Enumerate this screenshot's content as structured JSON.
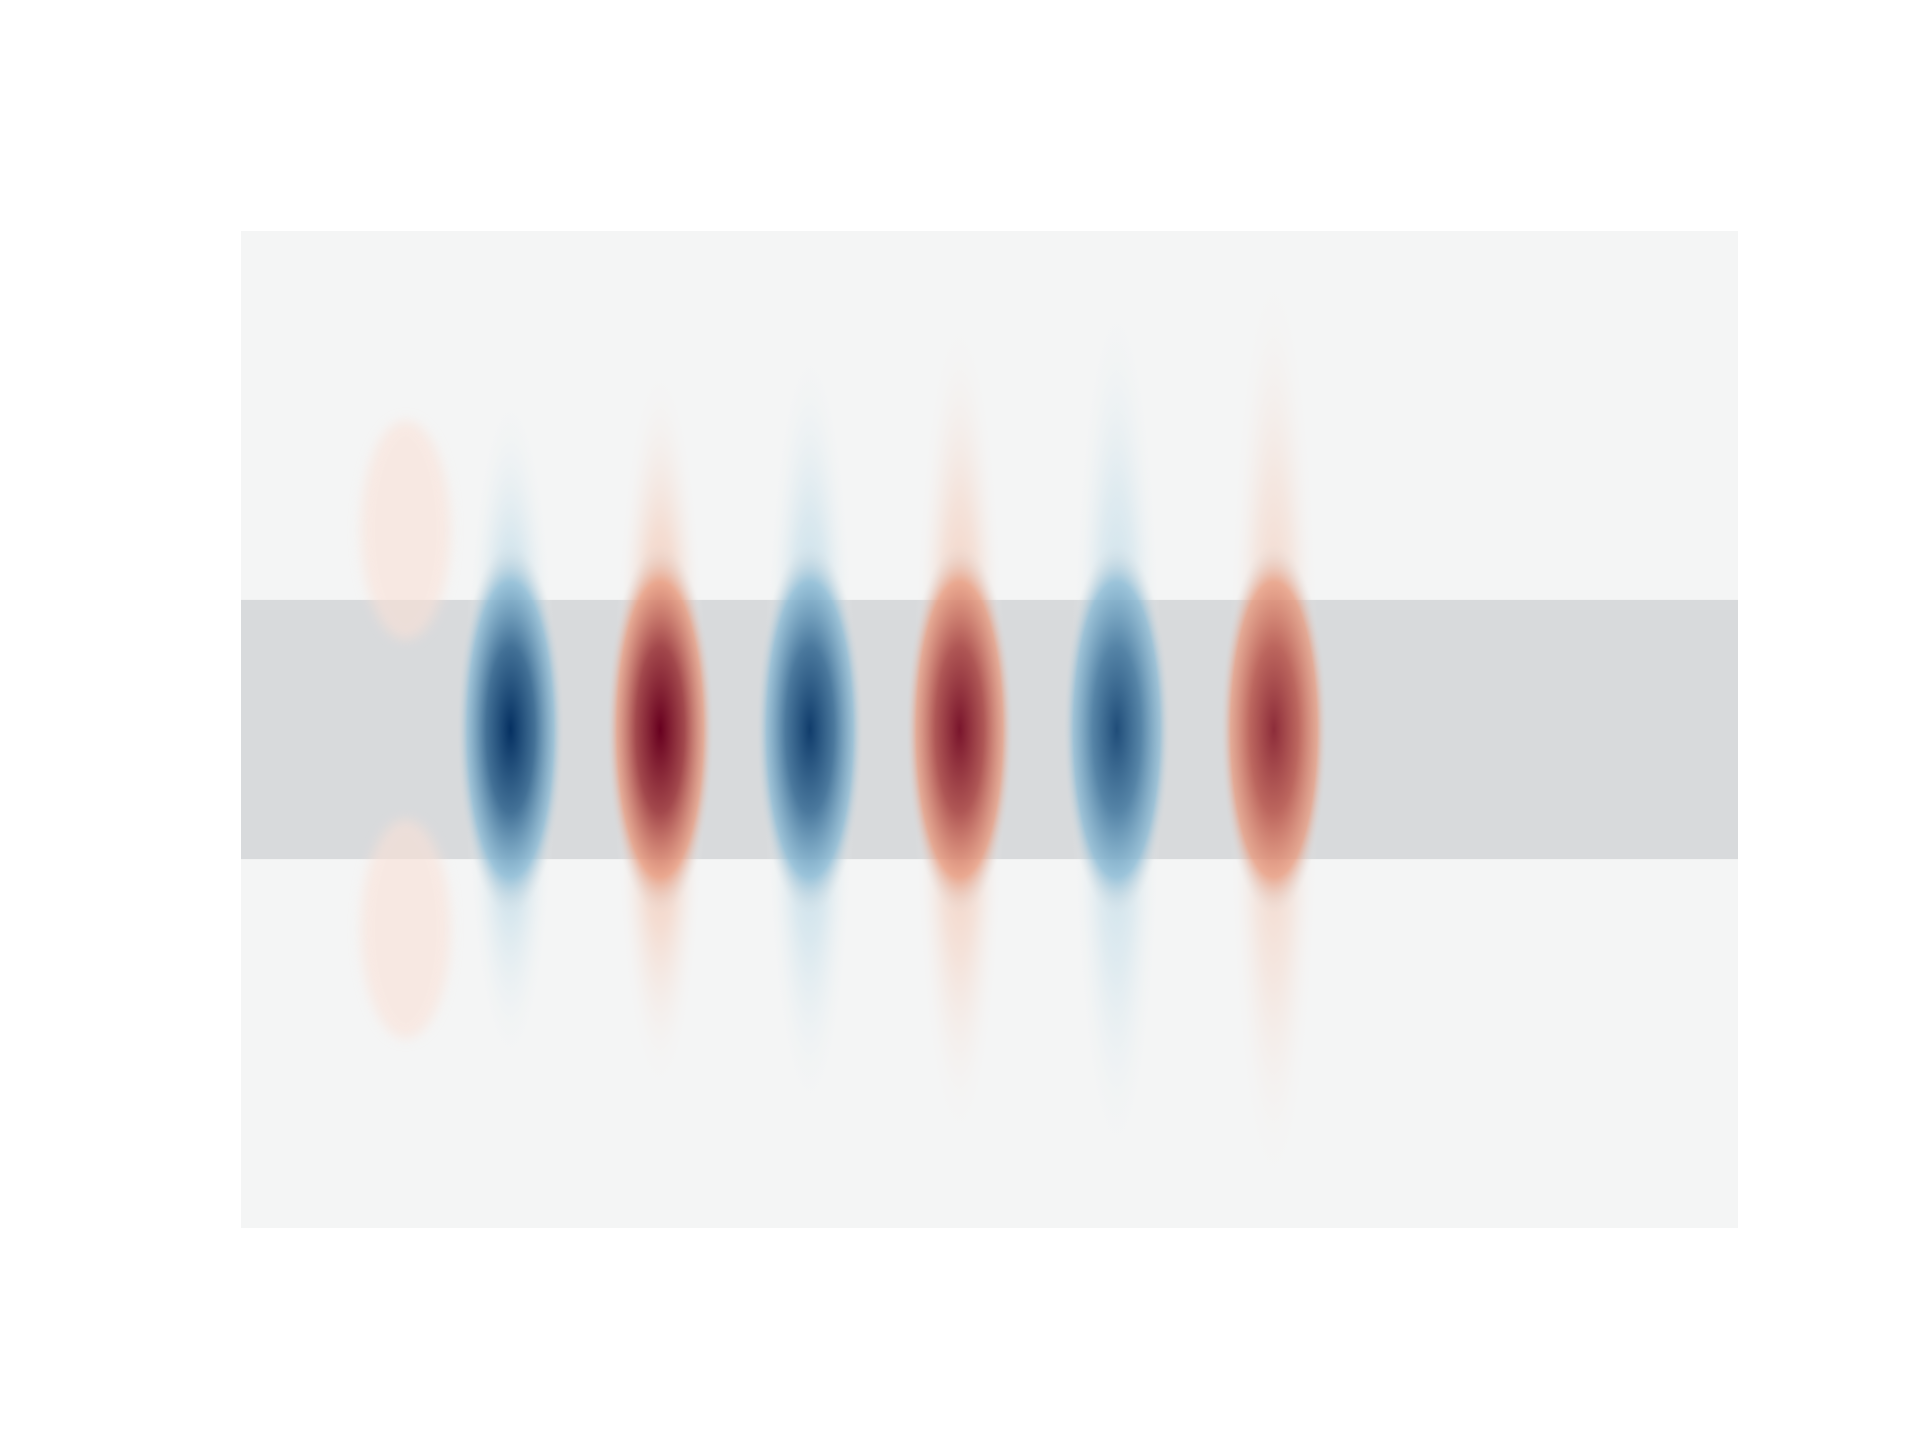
{
  "chart_data": {
    "type": "heatmap",
    "title": "",
    "xlabel": "",
    "ylabel": "",
    "axes_visible": false,
    "colormap": "RdBu_r",
    "colors": {
      "positive": "#67001f",
      "negative": "#053061",
      "zero": "#f4f5f5",
      "waveguide_core": "#d8dadc"
    },
    "value_range": [
      -1,
      1
    ],
    "extent": {
      "x": [
        0,
        20
      ],
      "y": [
        -5,
        5
      ]
    },
    "waveguide": {
      "y_range": [
        -1.3,
        1.3
      ]
    },
    "source": {
      "x": 2.8,
      "y_range": [
        -3.0,
        3.0
      ]
    },
    "field_lobes": [
      {
        "x": 3.6,
        "amplitude": -1.0
      },
      {
        "x": 5.6,
        "amplitude": 1.0
      },
      {
        "x": 7.6,
        "amplitude": -0.88
      },
      {
        "x": 9.6,
        "amplitude": 0.8
      },
      {
        "x": 11.7,
        "amplitude": -0.7
      },
      {
        "x": 13.8,
        "amplitude": 0.58
      }
    ]
  }
}
